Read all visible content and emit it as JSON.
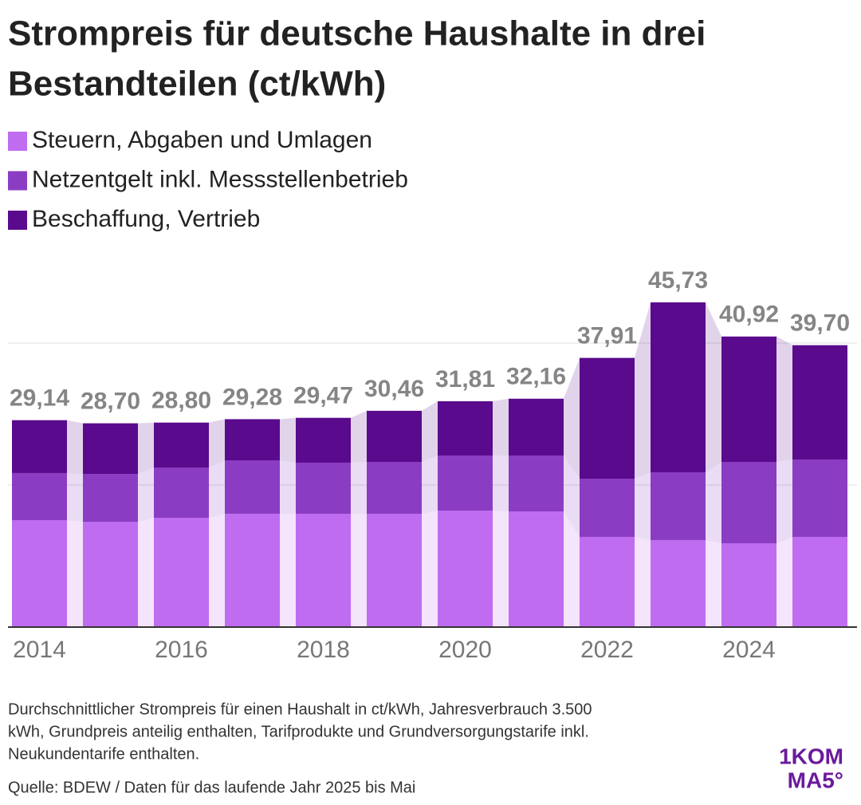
{
  "chart_data": {
    "type": "stacked_bar",
    "title": [
      "Strompreis für deutsche Haushalte in drei",
      "Bestandteilen (ct/kWh)"
    ],
    "categories": [
      "2014",
      null,
      "2016",
      null,
      "2018",
      null,
      "2020",
      null,
      "2022",
      null,
      "2024",
      null
    ],
    "series": [
      {
        "name": "Steuern, Abgaben und Umlagen",
        "color": "#c06cf0",
        "values": [
          15.06,
          14.83,
          15.39,
          15.96,
          15.96,
          15.96,
          16.4,
          16.29,
          12.7,
          12.25,
          11.8,
          12.7
        ]
      },
      {
        "name": "Netzentgelt inkl. Messstellenbetrieb",
        "color": "#8a3dc2",
        "values": [
          6.63,
          6.74,
          7.08,
          7.52,
          7.19,
          7.3,
          7.76,
          7.87,
          8.2,
          9.55,
          11.46,
          10.9
        ]
      },
      {
        "name": "Beschaffung, Vertrieb",
        "color": "#5a0a8c",
        "values": [
          7.45,
          7.13,
          6.33,
          5.8,
          6.32,
          7.2,
          7.65,
          8.0,
          17.01,
          23.93,
          17.66,
          16.1
        ]
      }
    ],
    "totals": {
      "values": [
        29.14,
        28.7,
        28.8,
        29.28,
        29.47,
        30.46,
        31.81,
        32.16,
        37.91,
        45.73,
        40.92,
        39.7
      ],
      "value_labels": [
        "29,14",
        "28,70",
        "28,80",
        "29,28",
        "29,47",
        "30,46",
        "31,81",
        "32,16",
        "37,91",
        "45,73",
        "40,92",
        "39,70"
      ]
    },
    "ylim": [
      0,
      50
    ],
    "grid_lines": [
      20,
      40
    ],
    "grid": true,
    "footnote": [
      "Durchschnittlicher Strompreis für einen Haushalt in ct/kWh, Jahresverbrauch 3.500",
      "kWh, Grundpreis anteilig enthalten, Tarifprodukte und Grundversorgungstarife inkl.",
      "Neukundentarife enthalten."
    ],
    "source": "Quelle: BDEW / Daten für das laufende Jahr 2025 bis Mai",
    "logo": [
      "1KOM",
      "MA5°"
    ]
  }
}
